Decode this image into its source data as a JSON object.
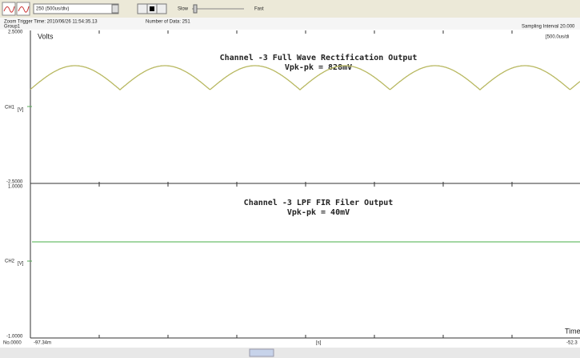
{
  "toolbar": {
    "timebase": "250  (500us/div)",
    "slow": "Slow",
    "fast": "Fast"
  },
  "info": {
    "trigger": "Zoom Trigger Time: 2010/06/26 11:54:35.13",
    "group": "Group1",
    "data_count": "Number of Data: 251",
    "sampling": "Sampling Interval  20.000"
  },
  "top_plot": {
    "ymax": "2.5000",
    "unit_label": "Volts",
    "div": "[500.0us/di",
    "title": "Channel -3  Full Wave Rectification Output",
    "vpp": "Vpk-pk = 828mV",
    "channel": "CH1",
    "channel_unit": "[V]",
    "ymin": "-2.5000"
  },
  "bottom_plot": {
    "ymax": "1.0000",
    "title": "Channel -3  LPF FIR Filer Output",
    "vpp": "Vpk-pk = 40mV",
    "channel": "CH2",
    "channel_unit": "[V]",
    "ymin": "-1.0000",
    "axis_label": "Time"
  },
  "footer": {
    "index": "No.0000",
    "start": "-97.34m",
    "unit": "[s]",
    "end": "-52.3"
  }
}
